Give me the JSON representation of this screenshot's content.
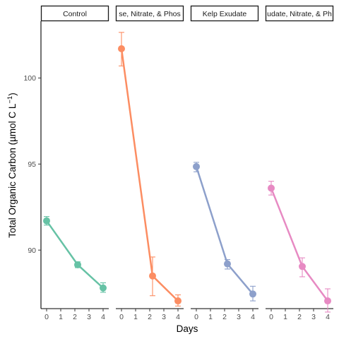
{
  "chart_data": {
    "type": "line",
    "ylabel": "Total Organic Carbon (µmol C L⁻¹)",
    "xlabel": "Days",
    "x_ticks": [
      0,
      1,
      2,
      3,
      4
    ],
    "y_ticks": [
      90,
      95,
      100
    ],
    "xlim": [
      -0.4,
      4.4
    ],
    "ylim": [
      86.6,
      103.3
    ],
    "grid": false,
    "legend": "none",
    "panels": [
      {
        "strip_label": "Control",
        "color": "#66C2A5",
        "x": [
          0,
          2.2,
          4
        ],
        "y": [
          91.7,
          89.15,
          87.8
        ],
        "err_low": [
          91.45,
          88.98,
          87.55
        ],
        "err_high": [
          91.95,
          89.32,
          88.1
        ]
      },
      {
        "strip_label": "se, Nitrate, & Phos",
        "color": "#FC8D62",
        "x": [
          0,
          2.2,
          4
        ],
        "y": [
          101.7,
          88.5,
          87.05
        ],
        "err_low": [
          100.7,
          87.35,
          86.75
        ],
        "err_high": [
          102.65,
          89.6,
          87.4
        ]
      },
      {
        "strip_label": "Kelp Exudate",
        "color": "#8DA0CB",
        "x": [
          0,
          2.2,
          4
        ],
        "y": [
          94.85,
          89.2,
          87.45
        ],
        "err_low": [
          94.55,
          88.9,
          87.05
        ],
        "err_high": [
          95.1,
          89.45,
          87.9
        ]
      },
      {
        "strip_label": "udate, Nitrate, & Ph",
        "color": "#E78AC3",
        "x": [
          0,
          2.2,
          4
        ],
        "y": [
          93.6,
          89.05,
          87.05
        ],
        "err_low": [
          93.2,
          88.45,
          86.4
        ],
        "err_high": [
          94.0,
          89.55,
          87.75
        ]
      }
    ]
  }
}
